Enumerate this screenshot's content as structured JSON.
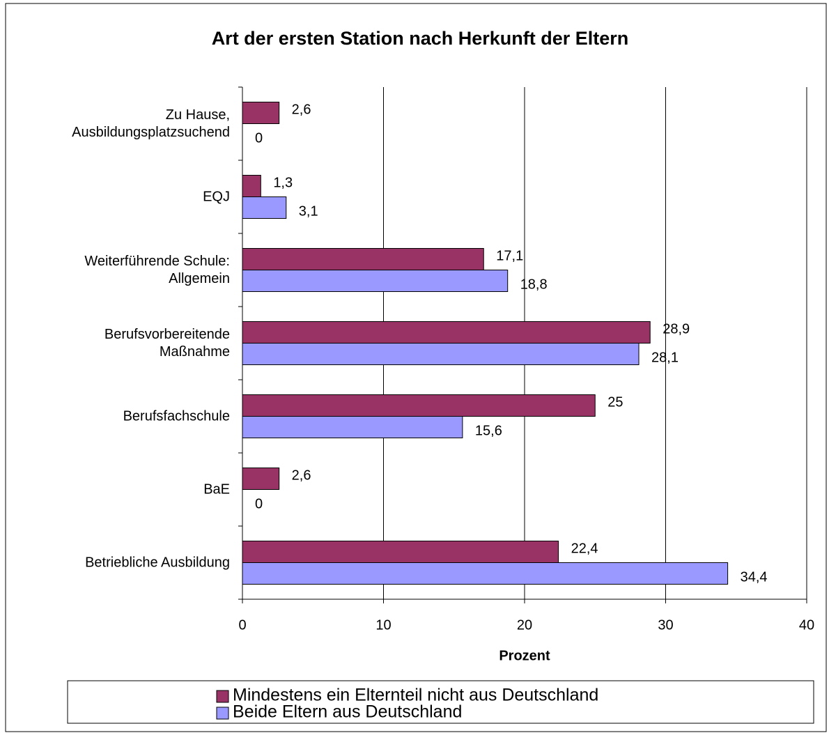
{
  "chart_data": {
    "type": "hbar",
    "title": "Art der ersten Station nach Herkunft der Eltern",
    "xlabel": "Prozent",
    "categories": [
      "Zu Hause,\nAusbildungsplatzsuchend",
      "EQJ",
      "Weiterführende Schule:\nAllgemein",
      "Berufsvorbereitende\nMaßnahme",
      "Berufsfachschule",
      "BaE",
      "Betriebliche Ausbildung"
    ],
    "series": [
      {
        "name": "Mindestens ein Elternteil nicht aus Deutschland",
        "color": "#993366",
        "values": [
          2.6,
          1.3,
          17.1,
          28.9,
          25,
          2.6,
          22.4
        ],
        "value_labels": [
          "2,6",
          "1,3",
          "17,1",
          "28,9",
          "25",
          "2,6",
          "22,4"
        ]
      },
      {
        "name": "Beide Eltern aus Deutschland",
        "color": "#9999ff",
        "values": [
          0,
          3.1,
          18.8,
          28.1,
          15.6,
          0,
          34.4
        ],
        "value_labels": [
          "0",
          "3,1",
          "18,8",
          "28,1",
          "15,6",
          "0",
          "34,4"
        ]
      }
    ],
    "xlim": [
      0,
      40
    ],
    "xticks": [
      0,
      10,
      20,
      30,
      40
    ],
    "grid": true
  }
}
